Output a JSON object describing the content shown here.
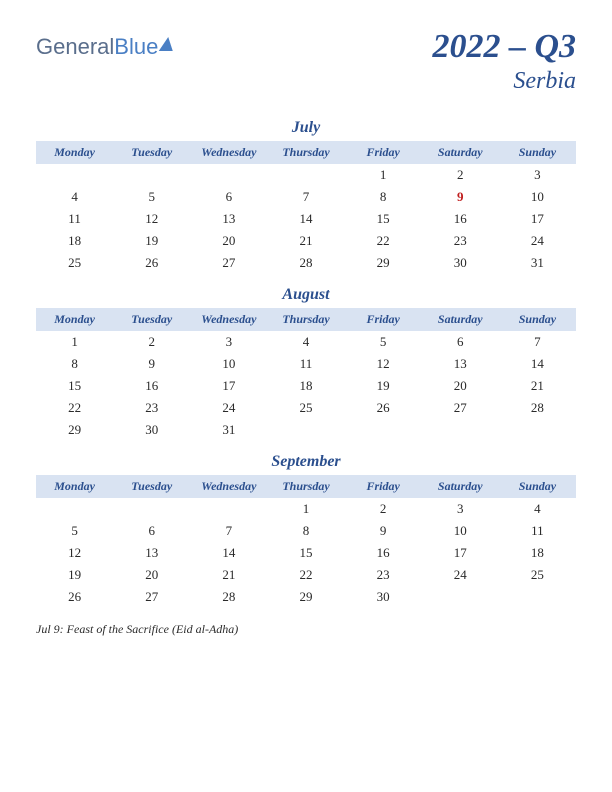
{
  "brand": {
    "part1": "General",
    "part2": "Blue"
  },
  "header": {
    "quarter": "2022 – Q3",
    "country": "Serbia"
  },
  "colors": {
    "accent": "#2b4f8e",
    "header_bg": "#d9e3f2",
    "holiday": "#c02020",
    "text": "#2a2a2a",
    "background": "#ffffff"
  },
  "day_headers": [
    "Monday",
    "Tuesday",
    "Wednesday",
    "Thursday",
    "Friday",
    "Saturday",
    "Sunday"
  ],
  "months": [
    {
      "name": "July",
      "weeks": [
        [
          "",
          "",
          "",
          "",
          "1",
          "2",
          "3"
        ],
        [
          "4",
          "5",
          "6",
          "7",
          "8",
          "9",
          "10"
        ],
        [
          "11",
          "12",
          "13",
          "14",
          "15",
          "16",
          "17"
        ],
        [
          "18",
          "19",
          "20",
          "21",
          "22",
          "23",
          "24"
        ],
        [
          "25",
          "26",
          "27",
          "28",
          "29",
          "30",
          "31"
        ]
      ],
      "holidays": [
        [
          1,
          5
        ]
      ]
    },
    {
      "name": "August",
      "weeks": [
        [
          "1",
          "2",
          "3",
          "4",
          "5",
          "6",
          "7"
        ],
        [
          "8",
          "9",
          "10",
          "11",
          "12",
          "13",
          "14"
        ],
        [
          "15",
          "16",
          "17",
          "18",
          "19",
          "20",
          "21"
        ],
        [
          "22",
          "23",
          "24",
          "25",
          "26",
          "27",
          "28"
        ],
        [
          "29",
          "30",
          "31",
          "",
          "",
          "",
          ""
        ]
      ],
      "holidays": []
    },
    {
      "name": "September",
      "weeks": [
        [
          "",
          "",
          "",
          "1",
          "2",
          "3",
          "4"
        ],
        [
          "5",
          "6",
          "7",
          "8",
          "9",
          "10",
          "11"
        ],
        [
          "12",
          "13",
          "14",
          "15",
          "16",
          "17",
          "18"
        ],
        [
          "19",
          "20",
          "21",
          "22",
          "23",
          "24",
          "25"
        ],
        [
          "26",
          "27",
          "28",
          "29",
          "30",
          "",
          ""
        ]
      ],
      "holidays": []
    }
  ],
  "notes": "Jul 9: Feast of the Sacrifice (Eid al-Adha)"
}
